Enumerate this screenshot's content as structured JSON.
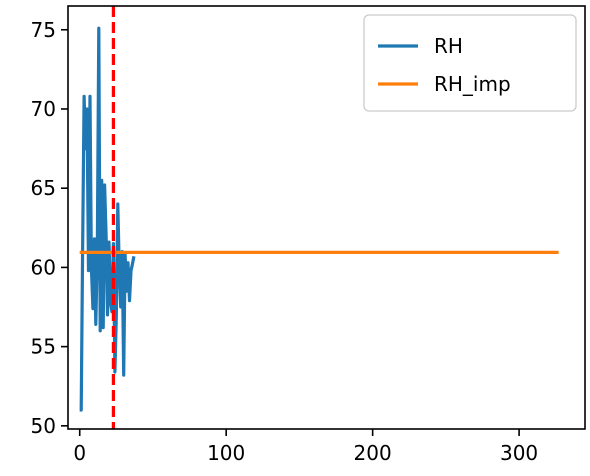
{
  "chart_data": {
    "type": "line",
    "title": "",
    "xlabel": "",
    "ylabel": "",
    "xlim": [
      -8,
      345
    ],
    "ylim": [
      49.8,
      76.5
    ],
    "xticks": [
      0,
      100,
      200,
      300
    ],
    "yticks": [
      50,
      55,
      60,
      65,
      70,
      75
    ],
    "xtick_labels": [
      "0",
      "100",
      "200",
      "300"
    ],
    "ytick_labels": [
      "50",
      "55",
      "60",
      "65",
      "70",
      "75"
    ],
    "grid": false,
    "legend": {
      "position": "top-right"
    },
    "series": [
      {
        "name": "RH",
        "color": "#1f77b4",
        "x": [
          0,
          1,
          2,
          3,
          4,
          5,
          6,
          7,
          8,
          9,
          10,
          11,
          12,
          13,
          14,
          15,
          16,
          17,
          18,
          19,
          20,
          21,
          22,
          23,
          24,
          25,
          26,
          27,
          28,
          29,
          30,
          31,
          32,
          33,
          34,
          35,
          36,
          37
        ],
        "y": [
          51.0,
          51.0,
          61.0,
          70.8,
          67.5,
          70.0,
          59.8,
          70.8,
          60.0,
          57.4,
          61.8,
          56.4,
          61.0,
          75.1,
          56.0,
          65.5,
          56.2,
          65.2,
          62.0,
          57.0,
          61.6,
          57.8,
          57.2,
          61.5,
          53.4,
          56.9,
          64.0,
          59.8,
          57.5,
          61.0,
          53.2,
          60.8,
          58.5,
          60.3,
          57.9,
          59.8,
          60.2,
          60.7
        ]
      },
      {
        "name": "RH_imp",
        "color": "#ff7f0e",
        "x": [
          0,
          327
        ],
        "y": [
          60.95,
          60.95
        ]
      }
    ],
    "vlines": [
      {
        "x": 23,
        "color": "#ff0000",
        "style": "dashed"
      }
    ]
  }
}
